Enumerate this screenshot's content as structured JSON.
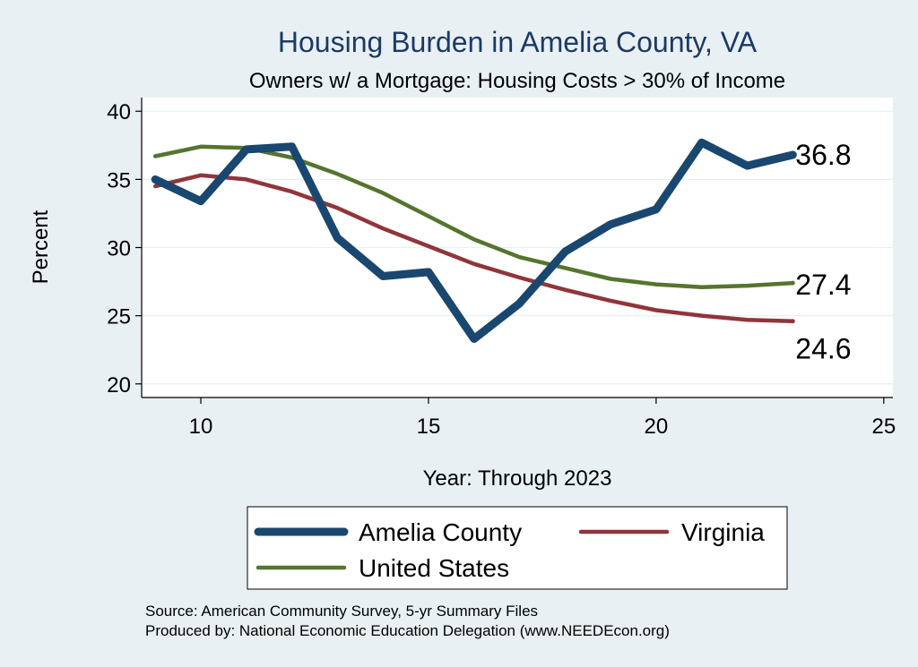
{
  "chart_data": {
    "type": "line",
    "title": "Housing Burden in Amelia County, VA",
    "subtitle": "Owners w/ a Mortgage: Housing Costs > 30% of Income",
    "xlabel": "Year: Through 2023",
    "ylabel": "Percent",
    "xlim": [
      8.7,
      25.2
    ],
    "ylim": [
      19.0,
      41.0
    ],
    "xticks": [
      10,
      15,
      20,
      25
    ],
    "yticks": [
      20,
      25,
      30,
      35,
      40
    ],
    "grid": true,
    "x": [
      9,
      10,
      11,
      12,
      13,
      14,
      15,
      16,
      17,
      18,
      19,
      20,
      21,
      22,
      23
    ],
    "series": [
      {
        "name": "Amelia County",
        "color": "#1a476f",
        "values": [
          35.0,
          33.4,
          37.2,
          37.4,
          30.7,
          27.9,
          28.2,
          23.3,
          25.9,
          29.7,
          31.7,
          32.8,
          37.7,
          36.0,
          36.8
        ],
        "end_label": "36.8"
      },
      {
        "name": "Virginia",
        "color": "#90353b",
        "values": [
          34.5,
          35.3,
          35.0,
          34.1,
          32.9,
          31.4,
          30.1,
          28.8,
          27.8,
          26.9,
          26.1,
          25.4,
          25.0,
          24.7,
          24.6
        ],
        "end_label": "24.6"
      },
      {
        "name": "United States",
        "color": "#55752f",
        "values": [
          36.7,
          37.4,
          37.3,
          36.6,
          35.4,
          34.0,
          32.3,
          30.6,
          29.3,
          28.5,
          27.7,
          27.3,
          27.1,
          27.2,
          27.4
        ],
        "end_label": "27.4"
      }
    ],
    "legend_position": "bottom"
  },
  "source": {
    "line1": "Source: American Community Survey, 5-yr Summary Files",
    "line2": "Produced by: National Economic Education Delegation (www.NEEDEcon.org)"
  }
}
